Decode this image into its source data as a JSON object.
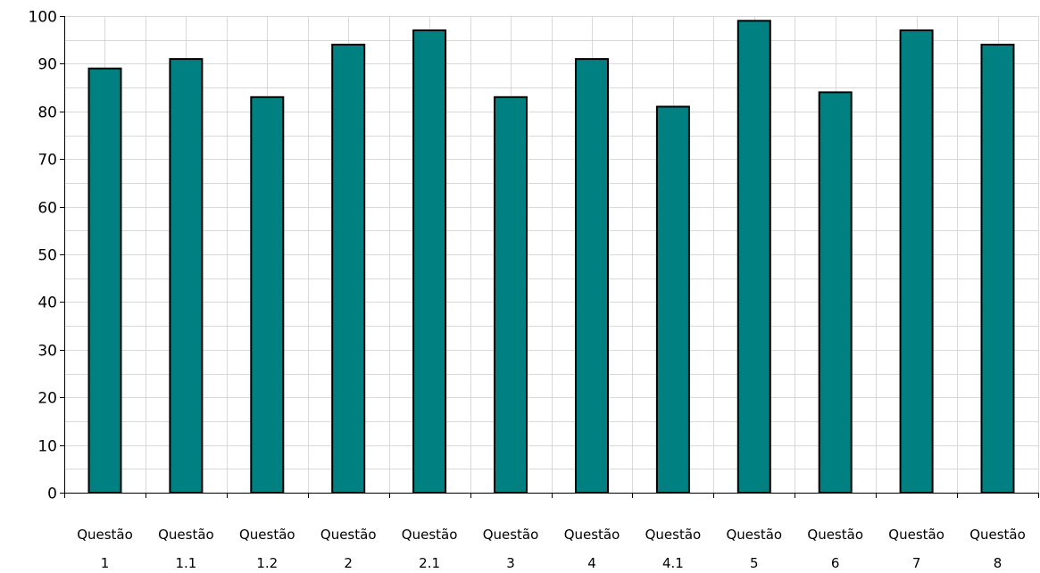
{
  "chart_data": {
    "type": "bar",
    "title": "",
    "xlabel": "",
    "ylabel": "",
    "ylim": [
      0,
      100
    ],
    "y_ticks": [
      "0",
      "10",
      "20",
      "30",
      "40",
      "50",
      "60",
      "70",
      "80",
      "90",
      "100"
    ],
    "categories": [
      [
        "Questão",
        "1"
      ],
      [
        "Questão",
        "1.1"
      ],
      [
        "Questão",
        "1.2"
      ],
      [
        "Questão",
        "2"
      ],
      [
        "Questão",
        "2.1"
      ],
      [
        "Questão",
        "3"
      ],
      [
        "Questão",
        "4"
      ],
      [
        "Questão",
        "4.1"
      ],
      [
        "Questão",
        "5"
      ],
      [
        "Questão",
        "6"
      ],
      [
        "Questão",
        "7"
      ],
      [
        "Questão",
        "8"
      ]
    ],
    "values": [
      89,
      91,
      83,
      94,
      97,
      83,
      91,
      81,
      99,
      84,
      97,
      94
    ],
    "grid": true,
    "bar_color": "#008080",
    "bar_edge_color": "#000000",
    "grid_color": "#d9d9d9"
  }
}
